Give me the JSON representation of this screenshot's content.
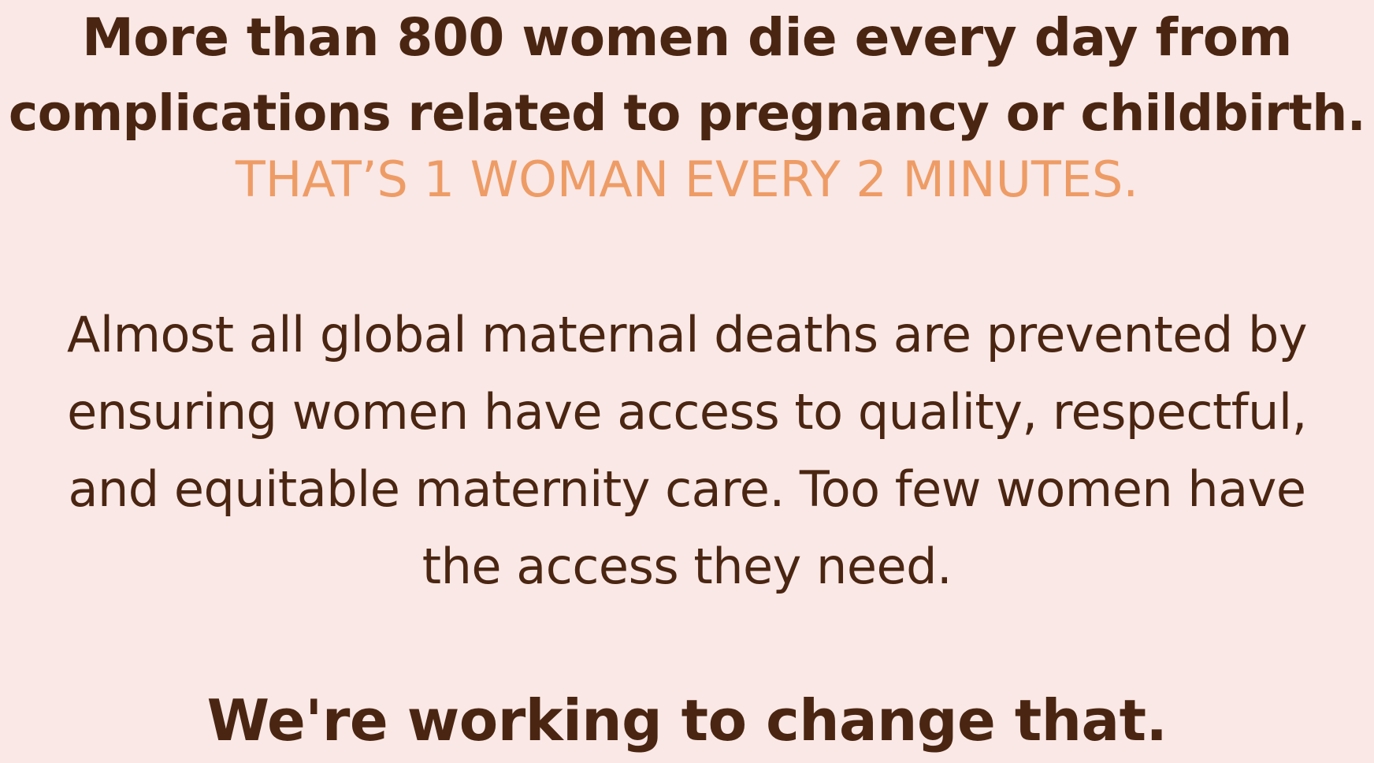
{
  "heading": {
    "line1": "More than 800 women die every day from",
    "line2": "complications related to pregnancy or childbirth."
  },
  "highlight": "THAT’S 1 WOMAN EVERY 2 MINUTES.",
  "body": {
    "line1": "Almost all global maternal deaths are prevented by",
    "line2": "ensuring women have access to quality, respectful,",
    "line3": "and equitable maternity care. Too few women have",
    "line4": "the access they need."
  },
  "closing": "We're working to change that.",
  "colors": {
    "background": "#FAE8E6",
    "text": "#4A2612",
    "accent": "#EE9C66"
  }
}
